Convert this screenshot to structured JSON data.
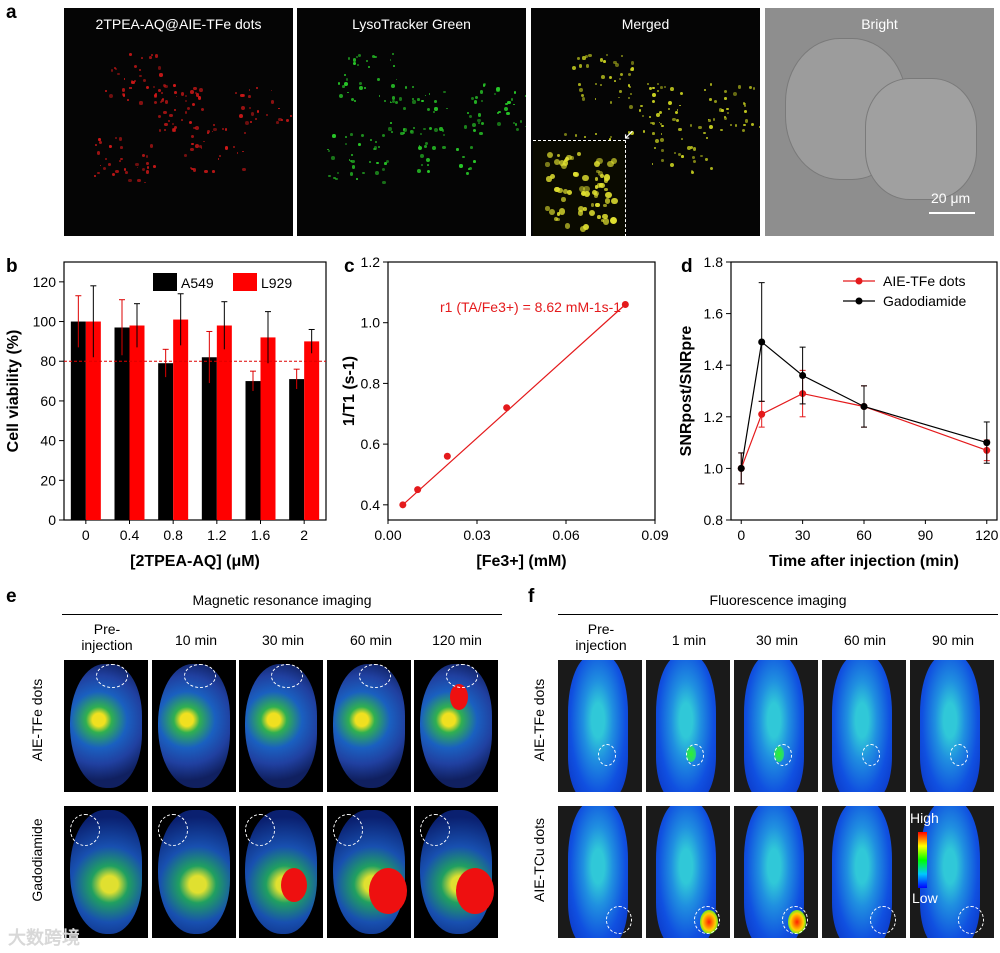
{
  "panel_labels": {
    "a": "a",
    "b": "b",
    "c": "c",
    "d": "d",
    "e": "e",
    "f": "f"
  },
  "panel_a": {
    "titles": [
      "2TPEA-AQ@AIE-TFe dots",
      "LysoTracker Green",
      "Merged",
      "Bright"
    ],
    "scale_bar": "20 μm"
  },
  "chart_data": [
    {
      "panel": "b",
      "type": "bar",
      "categories": [
        "0",
        "0.4",
        "0.8",
        "1.2",
        "1.6",
        "2"
      ],
      "xlabel": "[2TPEA-AQ] (μM)",
      "ylabel": "Cell viability (%)",
      "ylim": [
        0,
        130
      ],
      "yticks": [
        "0",
        "20",
        "40",
        "60",
        "80",
        "100",
        "120"
      ],
      "reference_line": 80,
      "legend_position": "top-right",
      "series": [
        {
          "name": "A549",
          "color": "#000000",
          "values": [
            100,
            97,
            79,
            82,
            70,
            71
          ],
          "errors": [
            13,
            14,
            7,
            13,
            5,
            5
          ]
        },
        {
          "name": "L929",
          "color": "#ff0000",
          "values": [
            100,
            98,
            101,
            98,
            92,
            90
          ],
          "errors": [
            18,
            11,
            13,
            12,
            13,
            6
          ]
        }
      ]
    },
    {
      "panel": "c",
      "type": "scatter",
      "xlabel": "[Fe3+] (mM)",
      "ylabel": "1/T1 (s-1)",
      "xlim": [
        0,
        0.09
      ],
      "ylim": [
        0.35,
        1.2
      ],
      "xticks": [
        "0.00",
        "0.03",
        "0.06",
        "0.09"
      ],
      "yticks": [
        "0.4",
        "0.6",
        "0.8",
        "1.0",
        "1.2"
      ],
      "annotation": "r1 (TA/Fe3+) = 8.62 mM-1s-1",
      "color": "#e41a1c",
      "x": [
        0.005,
        0.01,
        0.02,
        0.04,
        0.08
      ],
      "y": [
        0.4,
        0.45,
        0.56,
        0.72,
        1.06
      ]
    },
    {
      "panel": "d",
      "type": "line",
      "xlabel": "Time after injection (min)",
      "ylabel": "SNRpost/SNRpre",
      "xlim": [
        -5,
        125
      ],
      "ylim": [
        0.8,
        1.8
      ],
      "xticks": [
        "0",
        "30",
        "60",
        "90",
        "120"
      ],
      "yticks": [
        "0.8",
        "1.0",
        "1.2",
        "1.4",
        "1.6",
        "1.8"
      ],
      "legend_position": "top-right",
      "x": [
        0,
        10,
        30,
        60,
        120
      ],
      "series": [
        {
          "name": "AIE-TFe dots",
          "color": "#e41a1c",
          "values": [
            1.0,
            1.21,
            1.29,
            1.24,
            1.07
          ],
          "errors": [
            0.06,
            0.05,
            0.09,
            0.08,
            0.04
          ]
        },
        {
          "name": "Gadodiamide",
          "color": "#000000",
          "values": [
            1.0,
            1.49,
            1.36,
            1.24,
            1.1
          ],
          "errors": [
            0.06,
            0.23,
            0.11,
            0.08,
            0.08
          ]
        }
      ]
    }
  ],
  "panel_e": {
    "heading": "Magnetic resonance imaging",
    "columns": [
      "Pre-\ninjection",
      "10 min",
      "30 min",
      "60 min",
      "120 min"
    ],
    "rows": [
      "AIE-TFe dots",
      "Gadodiamide"
    ]
  },
  "panel_f": {
    "heading": "Fluorescence imaging",
    "columns": [
      "Pre-\ninjection",
      "1 min",
      "30 min",
      "60 min",
      "90 min"
    ],
    "rows": [
      "AIE-TFe dots",
      "AIE-TCu dots"
    ],
    "colorbar": {
      "high": "High",
      "low": "Low"
    }
  },
  "watermark": "大数跨境"
}
